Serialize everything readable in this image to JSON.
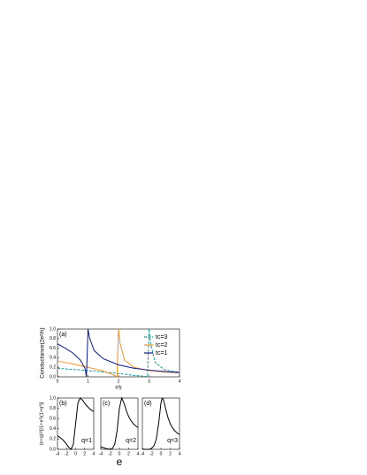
{
  "chart_data": [
    {
      "type": "line",
      "panel_label": "(a)",
      "xlabel": "ε/γ",
      "ylabel": "Conductance(2e²/h)",
      "xlim": [
        0,
        4
      ],
      "xticks": [
        0,
        1,
        2,
        3,
        4
      ],
      "ylim": [
        0,
        1
      ],
      "yticks": [
        {
          "value": 0,
          "label": "0.0"
        },
        0.2,
        0.4,
        0.6,
        0.8,
        {
          "value": 1,
          "label": "1.0"
        }
      ],
      "legend": "upper right",
      "series": [
        {
          "name": "tc=3",
          "color": "#1a9a9a",
          "dash": true,
          "x": [
            0,
            1,
            2,
            2.5,
            2.9,
            2.95,
            3,
            3.05,
            3.2,
            3.5,
            4
          ],
          "values": [
            0.18,
            0.13,
            0.07,
            0.03,
            0.01,
            0,
            1,
            0.7,
            0.3,
            0.15,
            0.09
          ]
        },
        {
          "name": "tc=2",
          "color": "#f0922a",
          "dash": false,
          "x": [
            0,
            0.5,
            1,
            1.5,
            1.8,
            1.95,
            2,
            2.05,
            2.2,
            2.5,
            3,
            3.5,
            4
          ],
          "values": [
            0.33,
            0.27,
            0.2,
            0.12,
            0.05,
            0,
            1,
            0.7,
            0.35,
            0.2,
            0.13,
            0.1,
            0.08
          ]
        },
        {
          "name": "tc=1",
          "color": "#0d1a8c",
          "dash": false,
          "x": [
            0,
            0.25,
            0.5,
            0.75,
            0.9,
            0.95,
            1,
            1.05,
            1.2,
            1.5,
            2,
            2.5,
            3,
            3.5,
            4
          ],
          "values": [
            0.69,
            0.6,
            0.5,
            0.35,
            0.18,
            0,
            1,
            0.82,
            0.55,
            0.38,
            0.25,
            0.18,
            0.14,
            0.11,
            0.09
          ]
        }
      ]
    },
    {
      "type": "line",
      "panel_label": "(b)",
      "annotation": "q=1",
      "ylabel": "(e+q)²/[(1+e²)(1+q²)]",
      "xlim": [
        -4,
        4
      ],
      "xticks": [
        -4,
        -2,
        0,
        2,
        4
      ],
      "ylim": [
        0,
        1
      ],
      "yticks": [
        {
          "value": 0,
          "label": "0.0"
        },
        0.2,
        0.4,
        0.6,
        0.8,
        {
          "value": 1,
          "label": "1.0"
        }
      ],
      "series": [
        {
          "color": "#000000",
          "x": [
            -4,
            -3.5,
            -3,
            -2.5,
            -2,
            -1.5,
            -1,
            -0.5,
            0,
            0.5,
            1,
            1.5,
            2,
            2.5,
            3,
            3.5,
            4
          ],
          "values": [
            0.265,
            0.236,
            0.2,
            0.155,
            0.1,
            0.038,
            0,
            0.1,
            0.5,
            0.9,
            1,
            0.962,
            0.9,
            0.845,
            0.8,
            0.764,
            0.735
          ]
        }
      ]
    },
    {
      "type": "line",
      "panel_label": "(c)",
      "annotation": "q=2",
      "xlabel": "e",
      "xlim": [
        -4,
        4
      ],
      "xticks": [
        -4,
        -2,
        0,
        2,
        4
      ],
      "ylim": [
        0,
        1
      ],
      "series": [
        {
          "color": "#000000",
          "x": [
            -4,
            -3.5,
            -3,
            -2.5,
            -2,
            -1.5,
            -1,
            -0.5,
            0,
            0.5,
            1,
            1.5,
            2,
            2.5,
            3,
            3.5,
            4
          ],
          "values": [
            0.047,
            0.034,
            0.02,
            0.007,
            0,
            0.015,
            0.1,
            0.36,
            0.8,
            1,
            0.9,
            0.754,
            0.64,
            0.559,
            0.5,
            0.457,
            0.424
          ]
        }
      ]
    },
    {
      "type": "line",
      "panel_label": "(d)",
      "annotation": "q=3",
      "xlim": [
        -4,
        4
      ],
      "xticks": [
        -4,
        -2,
        0,
        2,
        4
      ],
      "ylim": [
        0,
        1
      ],
      "series": [
        {
          "color": "#000000",
          "x": [
            -4,
            -3.5,
            -3,
            -2.5,
            -2,
            -1.5,
            -1,
            -0.5,
            0,
            0.25,
            0.5,
            1,
            1.5,
            2,
            2.5,
            3,
            3.5,
            4
          ],
          "values": [
            0.006,
            0.002,
            0,
            0.003,
            0.02,
            0.069,
            0.2,
            0.5,
            0.9,
            0.994,
            0.98,
            0.8,
            0.623,
            0.5,
            0.417,
            0.36,
            0.319,
            0.288
          ]
        }
      ]
    }
  ]
}
